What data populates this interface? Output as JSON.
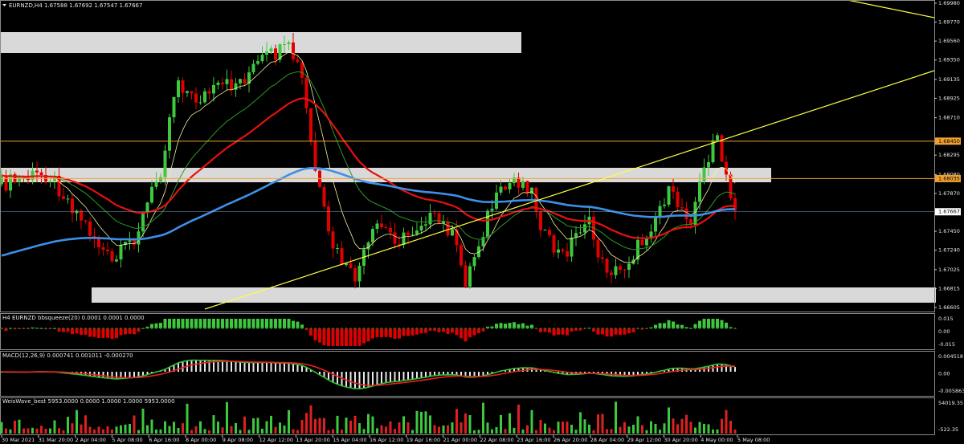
{
  "header": {
    "symbol_info": "EURNZD,H4  1.67588 1.67692 1.67547 1.67667"
  },
  "price_axis": [
    {
      "value": 1.6998,
      "label": "1.69980"
    },
    {
      "value": 1.6977,
      "label": "1.69770"
    },
    {
      "value": 1.6956,
      "label": "1.69560"
    },
    {
      "value": 1.6935,
      "label": "1.69350"
    },
    {
      "value": 1.69135,
      "label": "1.69135"
    },
    {
      "value": 1.68925,
      "label": "1.68925"
    },
    {
      "value": 1.6871,
      "label": "1.68710"
    },
    {
      "value": 1.68295,
      "label": "1.68295"
    },
    {
      "value": 1.6808,
      "label": "1.68080"
    },
    {
      "value": 1.6787,
      "label": "1.67870"
    },
    {
      "value": 1.6745,
      "label": "1.67450"
    },
    {
      "value": 1.6724,
      "label": "1.67240"
    },
    {
      "value": 1.67025,
      "label": "1.67025"
    },
    {
      "value": 1.66815,
      "label": "1.66815"
    },
    {
      "value": 1.66605,
      "label": "1.66605"
    }
  ],
  "levels": [
    {
      "value": 1.6845,
      "label": "1.68450"
    },
    {
      "value": 1.68035,
      "label": "1.68035"
    }
  ],
  "current_price": {
    "value": 1.67667,
    "label": "1.67667"
  },
  "panels": [
    {
      "title": "H4 EURNZD bbsqueeze(20) 0.0001 0.0001 0.0000",
      "ticks": [
        "0.015",
        "0.00",
        "-0.015"
      ]
    },
    {
      "title": "MACD(12,26,9) 0.000741 0.001011 -0.000270",
      "ticks": [
        "0.004518",
        "0.00",
        "-0.005863"
      ]
    },
    {
      "title": "WeisWave_best 5953.0000 0.0000 1.0000 1.0000 5953.0000",
      "ticks": [
        "54019.35",
        "-522.35"
      ]
    }
  ],
  "time_axis": [
    "30 Mar 2021",
    "31 Mar 20:00",
    "2 Apr 04:00",
    "5 Apr 08:00",
    "6 Apr 16:00",
    "8 Apr 00:00",
    "9 Apr 08:00",
    "12 Apr 12:00",
    "13 Apr 20:00",
    "15 Apr 04:00",
    "16 Apr 12:00",
    "19 Apr 16:00",
    "21 Apr 00:00",
    "22 Apr 08:00",
    "23 Apr 16:00",
    "26 Apr 20:00",
    "28 Apr 04:00",
    "29 Apr 12:00",
    "30 Apr 20:00",
    "4 May 00:00",
    "5 May 08:00"
  ]
}
